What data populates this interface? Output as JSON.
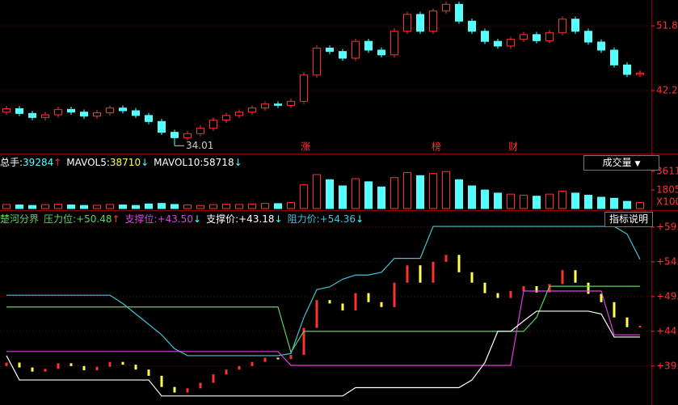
{
  "chart_data": [
    {
      "type": "candlestick",
      "open": [
        39.0,
        39.5,
        38.8,
        38.2,
        38.6,
        39.4,
        39.0,
        38.4,
        38.9,
        39.6,
        39.2,
        38.5,
        37.6,
        36.0,
        35.2,
        35.8,
        36.6,
        37.8,
        38.5,
        39.0,
        39.6,
        40.2,
        40.0,
        40.6,
        44.5,
        48.5,
        48.0,
        47.0,
        49.5,
        48.2,
        47.5,
        51.0,
        53.5,
        51.0,
        54.0,
        55.0,
        52.5,
        51.0,
        49.5,
        48.8,
        49.8,
        50.5,
        49.6,
        50.8,
        52.8,
        51.0,
        49.4,
        48.2,
        46.0,
        44.6
      ],
      "high": [
        39.9,
        39.9,
        39.2,
        39.0,
        39.8,
        39.8,
        39.4,
        39.3,
        40.0,
        40.0,
        39.6,
        38.9,
        38.0,
        36.4,
        36.2,
        37.0,
        38.2,
        38.9,
        39.4,
        40.0,
        40.6,
        40.6,
        41.0,
        44.9,
        48.9,
        48.9,
        48.4,
        49.9,
        49.9,
        48.6,
        51.4,
        53.9,
        53.9,
        54.4,
        55.4,
        55.4,
        52.9,
        51.4,
        49.9,
        50.2,
        50.9,
        50.9,
        51.2,
        53.2,
        53.2,
        51.4,
        49.8,
        48.6,
        46.4,
        45.2
      ],
      "low": [
        38.6,
        38.4,
        37.8,
        37.8,
        38.2,
        38.6,
        38.0,
        38.0,
        38.5,
        38.8,
        38.1,
        37.2,
        35.6,
        34.01,
        34.8,
        35.4,
        36.2,
        37.4,
        38.1,
        38.6,
        39.2,
        39.6,
        39.6,
        40.2,
        44.1,
        47.6,
        46.6,
        46.6,
        47.8,
        47.1,
        47.1,
        50.6,
        50.6,
        50.6,
        53.6,
        52.1,
        50.6,
        49.1,
        48.4,
        48.4,
        49.4,
        49.2,
        49.2,
        50.4,
        50.6,
        49.0,
        47.8,
        45.6,
        44.2,
        44.2
      ],
      "close": [
        39.5,
        38.8,
        38.2,
        38.6,
        39.4,
        39.0,
        38.4,
        38.9,
        39.6,
        39.2,
        38.5,
        37.6,
        36.0,
        35.2,
        35.8,
        36.6,
        37.8,
        38.5,
        39.0,
        39.6,
        40.2,
        40.0,
        40.6,
        44.5,
        48.5,
        48.0,
        47.0,
        49.5,
        48.2,
        47.5,
        51.0,
        53.5,
        51.0,
        54.0,
        55.0,
        52.5,
        51.0,
        49.5,
        48.8,
        49.8,
        50.5,
        49.6,
        50.8,
        52.8,
        51.0,
        49.4,
        48.2,
        46.0,
        44.6,
        44.8
      ],
      "low_label": "34.01",
      "events": [
        "涨",
        "榜",
        "财"
      ],
      "ylim": [
        32.84,
        55.64
      ],
      "yticks": [
        51.8,
        42.2
      ],
      "grid": true,
      "up_color": "#ff3232",
      "down_color": "#54ffff"
    },
    {
      "type": "bar",
      "values": [
        400,
        350,
        300,
        380,
        420,
        350,
        300,
        320,
        400,
        350,
        300,
        450,
        500,
        400,
        350,
        300,
        380,
        420,
        400,
        450,
        500,
        480,
        600,
        2300,
        3300,
        2800,
        2200,
        2900,
        2600,
        2100,
        3000,
        3500,
        3200,
        3400,
        3600,
        2800,
        2200,
        1800,
        1500,
        1400,
        1300,
        1200,
        1400,
        1700,
        1500,
        1300,
        1100,
        1000,
        700,
        600
      ],
      "ylim": [
        0,
        3611
      ],
      "yticks": [
        3611,
        1805
      ],
      "unit_label": "X100",
      "button": "成交量",
      "stats": [
        {
          "name": "总手:",
          "value": 39284,
          "arrow": "↑",
          "color": "#54ffff"
        },
        {
          "name": "MAVOL5:",
          "value": 38710,
          "arrow": "↓",
          "color": "#ffff54"
        },
        {
          "name": "MAVOL10:",
          "value": 58718,
          "arrow": "↓",
          "color": "#ffffff"
        }
      ]
    },
    {
      "type": "line",
      "title": "楚河分界",
      "button": "指标说明",
      "ylim": [
        33.4,
        61.2
      ],
      "yticks": [
        {
          "value": 59,
          "label": "+59."
        },
        {
          "value": 54,
          "label": "+54."
        },
        {
          "value": 49,
          "label": "+49."
        },
        {
          "value": 44,
          "label": "+44."
        },
        {
          "value": 39,
          "label": "+39."
        }
      ],
      "grid": true,
      "series": [
        {
          "name": "压力位:",
          "color": "#5fd35f",
          "value_label": "+50.48",
          "arrow": "↑",
          "values": [
            47.5,
            47.5,
            47.5,
            47.5,
            47.5,
            47.5,
            47.5,
            47.5,
            47.5,
            47.5,
            47.5,
            47.5,
            47.5,
            47.5,
            47.5,
            47.5,
            47.5,
            47.5,
            47.5,
            47.5,
            47.5,
            47.5,
            41.0,
            44.0,
            44.0,
            44.0,
            44.0,
            44.0,
            44.0,
            44.0,
            44.0,
            44.0,
            44.0,
            44.0,
            44.0,
            44.0,
            44.0,
            44.0,
            44.0,
            44.0,
            44.0,
            46.0,
            50.48,
            50.48,
            50.48,
            50.48,
            50.48,
            50.48,
            50.48,
            50.48
          ]
        },
        {
          "name": "支撑位:",
          "color": "#e040e0",
          "value_label": "+43.50",
          "arrow": "↓",
          "values": [
            41.1,
            41.1,
            41.1,
            41.1,
            41.1,
            41.1,
            41.1,
            41.1,
            41.1,
            41.1,
            41.1,
            41.1,
            41.1,
            41.1,
            41.1,
            41.1,
            41.1,
            41.1,
            41.1,
            41.1,
            41.1,
            41.1,
            39.1,
            39.1,
            39.1,
            39.1,
            39.1,
            39.1,
            39.1,
            39.1,
            39.1,
            39.1,
            39.1,
            39.1,
            39.1,
            39.1,
            39.1,
            39.1,
            39.1,
            39.1,
            49.8,
            49.8,
            49.8,
            49.8,
            49.8,
            49.8,
            49.8,
            43.5,
            43.5,
            43.5
          ]
        },
        {
          "name": "支撑价:",
          "color": "#ffffff",
          "value_label": "+43.18",
          "arrow": "↓",
          "values": [
            40.5,
            37.0,
            37.0,
            37.0,
            37.0,
            37.0,
            37.0,
            37.0,
            37.0,
            37.0,
            37.0,
            37.0,
            34.7,
            34.7,
            34.7,
            34.7,
            34.7,
            34.7,
            34.7,
            34.7,
            34.7,
            34.7,
            34.7,
            34.7,
            34.7,
            34.7,
            34.7,
            35.9,
            35.9,
            35.9,
            35.9,
            35.9,
            35.9,
            35.9,
            35.9,
            35.9,
            37.0,
            39.5,
            44.0,
            44.0,
            45.5,
            46.9,
            46.9,
            46.9,
            46.9,
            46.9,
            46.5,
            43.18,
            43.18,
            43.18
          ]
        },
        {
          "name": "阻力价:",
          "color": "#3cc8d8",
          "value_label": "+54.36",
          "arrow": "↓",
          "values": [
            49.2,
            49.2,
            49.2,
            49.2,
            49.2,
            49.2,
            49.2,
            49.2,
            49.2,
            48.0,
            46.5,
            45.0,
            43.5,
            41.5,
            40.5,
            40.5,
            40.5,
            40.5,
            40.5,
            40.5,
            40.5,
            40.5,
            40.8,
            46.0,
            50.0,
            50.4,
            51.5,
            52.1,
            52.1,
            52.5,
            54.5,
            54.5,
            54.5,
            59.1,
            59.1,
            59.1,
            59.1,
            59.1,
            59.1,
            59.1,
            59.1,
            59.1,
            59.1,
            59.1,
            59.1,
            59.1,
            59.1,
            59.1,
            58.0,
            54.36
          ]
        }
      ]
    }
  ]
}
